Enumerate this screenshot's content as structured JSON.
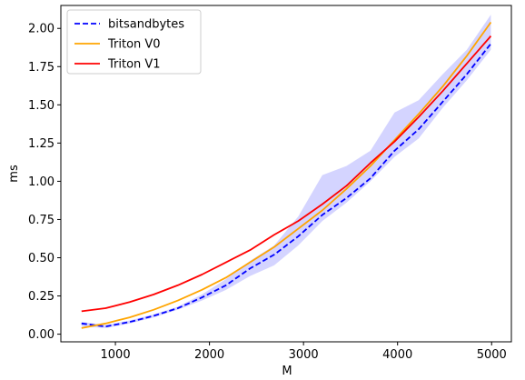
{
  "chart_data": {
    "type": "line",
    "xlabel": "M",
    "ylabel": "ms",
    "xlim": [
      420,
      5210
    ],
    "ylim": [
      -0.05,
      2.15
    ],
    "xticks": [
      1000,
      2000,
      3000,
      4000,
      5000
    ],
    "xtick_labels": [
      "1000",
      "2000",
      "3000",
      "4000",
      "5000"
    ],
    "yticks": [
      0.0,
      0.25,
      0.5,
      0.75,
      1.0,
      1.25,
      1.5,
      1.75,
      2.0
    ],
    "ytick_labels": [
      "0.00",
      "0.25",
      "0.50",
      "0.75",
      "1.00",
      "1.25",
      "1.50",
      "1.75",
      "2.00"
    ],
    "grid": false,
    "legend_position": "top-left",
    "series": [
      {
        "name": "bitsandbytes",
        "color": "#0000ff",
        "style": "dashed",
        "x": [
          640,
          896,
          1152,
          1408,
          1664,
          1920,
          2176,
          2432,
          2688,
          2944,
          3200,
          3456,
          3712,
          3968,
          4224,
          4480,
          4736,
          4992
        ],
        "y": [
          0.07,
          0.05,
          0.08,
          0.12,
          0.17,
          0.24,
          0.32,
          0.43,
          0.52,
          0.64,
          0.78,
          0.89,
          1.02,
          1.2,
          1.34,
          1.52,
          1.7,
          1.9
        ],
        "band_upper": [
          0.08,
          0.06,
          0.09,
          0.13,
          0.18,
          0.26,
          0.36,
          0.48,
          0.58,
          0.77,
          1.04,
          1.1,
          1.2,
          1.45,
          1.53,
          1.7,
          1.86,
          2.09
        ],
        "band_lower": [
          0.05,
          0.04,
          0.07,
          0.11,
          0.16,
          0.22,
          0.29,
          0.38,
          0.45,
          0.58,
          0.74,
          0.86,
          1.0,
          1.16,
          1.28,
          1.48,
          1.66,
          1.86
        ]
      },
      {
        "name": "Triton V0",
        "color": "#ffa500",
        "style": "solid",
        "x": [
          640,
          896,
          1152,
          1408,
          1664,
          1920,
          2176,
          2432,
          2688,
          2944,
          3200,
          3456,
          3712,
          3968,
          4224,
          4480,
          4736,
          4992
        ],
        "y": [
          0.04,
          0.07,
          0.11,
          0.16,
          0.22,
          0.29,
          0.37,
          0.47,
          0.57,
          0.69,
          0.81,
          0.95,
          1.1,
          1.27,
          1.44,
          1.62,
          1.82,
          2.04
        ]
      },
      {
        "name": "Triton V1",
        "color": "#ff0000",
        "style": "solid",
        "x": [
          640,
          896,
          1152,
          1408,
          1664,
          1920,
          2176,
          2432,
          2688,
          2944,
          3200,
          3456,
          3712,
          3968,
          4224,
          4480,
          4736,
          4992
        ],
        "y": [
          0.15,
          0.17,
          0.21,
          0.26,
          0.32,
          0.39,
          0.47,
          0.55,
          0.65,
          0.74,
          0.85,
          0.97,
          1.12,
          1.26,
          1.42,
          1.59,
          1.77,
          1.95
        ]
      }
    ]
  }
}
